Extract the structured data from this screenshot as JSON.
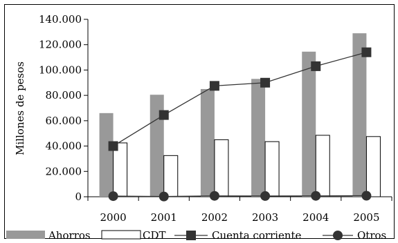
{
  "chart_data": {
    "type": "bar",
    "categories": [
      "2000",
      "2001",
      "2002",
      "2003",
      "2004",
      "2005"
    ],
    "ylabel": "Millones de pesos",
    "ylim": [
      0,
      140000
    ],
    "yticks": [
      0,
      20000,
      40000,
      60000,
      80000,
      100000,
      120000,
      140000
    ],
    "ytick_labels": [
      "0",
      "20.000",
      "40.000",
      "60.000",
      "80.000",
      "100.000",
      "120.000",
      "140.000"
    ],
    "grid": false,
    "legend_position": "bottom",
    "series": [
      {
        "name": "Ahorros",
        "kind": "bar",
        "color": "#999999",
        "values": [
          66000,
          80500,
          85000,
          93000,
          114500,
          129000
        ]
      },
      {
        "name": "CDT",
        "kind": "bar",
        "color": "#ffffff",
        "values": [
          42500,
          32500,
          45000,
          43500,
          48500,
          47500
        ]
      },
      {
        "name": "Cuenta corriente",
        "kind": "line",
        "marker": "square",
        "color": "#333333",
        "values": [
          40000,
          64500,
          87500,
          90000,
          103000,
          114000
        ]
      },
      {
        "name": "Otros",
        "kind": "line",
        "marker": "circle",
        "color": "#333333",
        "values": [
          500,
          200,
          700,
          600,
          700,
          800
        ]
      }
    ]
  }
}
